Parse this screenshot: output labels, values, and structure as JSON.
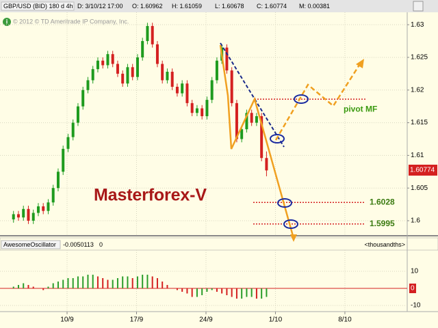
{
  "header": {
    "symbol": "GBP/USD (BID) 180 d 4h",
    "date": "D: 3/10/12 17:00",
    "open": "O: 1.60962",
    "high": "H: 1.61059",
    "low": "L: 1.60678",
    "close": "C: 1.60774",
    "range": "M: 0.00381"
  },
  "watermark": "© 2012 © TD Ameritrade IP Company, Inc.",
  "chart_data": [
    {
      "type": "candlestick",
      "title": "Masterforex-V",
      "x": [
        4.6,
        5.1,
        5.6,
        6.1,
        6.6,
        7.1,
        7.6,
        8.1,
        8.6,
        9.1,
        9.6,
        10.1,
        10.6,
        11.1,
        11.6,
        12.1,
        12.6,
        13.1,
        13.6,
        14.1,
        14.6,
        15.1,
        15.6,
        16.1,
        16.6,
        17.1,
        17.6,
        18.1,
        18.6,
        19.1,
        19.6,
        20.1,
        20.6,
        21.1,
        21.6,
        22.1,
        22.6,
        23.1,
        23.6,
        24.1,
        24.6,
        25.1,
        25.6,
        26.1,
        26.6,
        27.1,
        27.6,
        28.1,
        28.6,
        29.1,
        29.6,
        30.1
      ],
      "open": [
        1.6002,
        1.601,
        1.6005,
        1.6018,
        1.6,
        1.6012,
        1.6022,
        1.6015,
        1.6028,
        1.605,
        1.6075,
        1.611,
        1.6128,
        1.615,
        1.6175,
        1.62,
        1.6215,
        1.6232,
        1.6245,
        1.6238,
        1.6255,
        1.624,
        1.6225,
        1.621,
        1.6235,
        1.622,
        1.625,
        1.6275,
        1.6298,
        1.627,
        1.624,
        1.6215,
        1.6228,
        1.6205,
        1.6195,
        1.621,
        1.618,
        1.6165,
        1.6172,
        1.616,
        1.6185,
        1.6215,
        1.6245,
        1.6265,
        1.623,
        1.618,
        1.6125,
        1.614,
        1.6165,
        1.615,
        1.616,
        1.6096
      ],
      "high": [
        1.6015,
        1.6015,
        1.6023,
        1.6023,
        1.6017,
        1.6027,
        1.6027,
        1.6033,
        1.6055,
        1.608,
        1.6115,
        1.6133,
        1.6155,
        1.618,
        1.6205,
        1.622,
        1.6237,
        1.625,
        1.625,
        1.626,
        1.626,
        1.6245,
        1.623,
        1.624,
        1.624,
        1.6255,
        1.628,
        1.6303,
        1.6303,
        1.6275,
        1.6245,
        1.6233,
        1.6233,
        1.621,
        1.6215,
        1.6215,
        1.6185,
        1.6177,
        1.6177,
        1.619,
        1.622,
        1.625,
        1.627,
        1.627,
        1.6235,
        1.6185,
        1.6145,
        1.617,
        1.617,
        1.6165,
        1.6165,
        1.6106
      ],
      "low": [
        1.5997,
        1.6,
        1.6,
        1.5995,
        1.5995,
        1.6007,
        1.601,
        1.601,
        1.6023,
        1.6045,
        1.607,
        1.6105,
        1.6123,
        1.6145,
        1.617,
        1.6195,
        1.621,
        1.6227,
        1.6233,
        1.6233,
        1.6235,
        1.622,
        1.6205,
        1.6205,
        1.6215,
        1.6215,
        1.6245,
        1.627,
        1.6265,
        1.6235,
        1.621,
        1.621,
        1.62,
        1.619,
        1.619,
        1.6175,
        1.616,
        1.616,
        1.6155,
        1.6155,
        1.618,
        1.621,
        1.624,
        1.6225,
        1.6175,
        1.612,
        1.612,
        1.6135,
        1.6145,
        1.6145,
        1.6091,
        1.6068
      ],
      "close": [
        1.601,
        1.6005,
        1.6018,
        1.6,
        1.6012,
        1.6022,
        1.6015,
        1.6028,
        1.605,
        1.6075,
        1.611,
        1.6128,
        1.615,
        1.6175,
        1.62,
        1.6215,
        1.6232,
        1.6245,
        1.6238,
        1.6255,
        1.624,
        1.6225,
        1.621,
        1.6235,
        1.622,
        1.625,
        1.6275,
        1.6298,
        1.627,
        1.624,
        1.6215,
        1.6228,
        1.6205,
        1.6195,
        1.621,
        1.618,
        1.6165,
        1.6172,
        1.616,
        1.6185,
        1.6215,
        1.6245,
        1.6265,
        1.623,
        1.618,
        1.6125,
        1.614,
        1.6165,
        1.615,
        1.616,
        1.6096,
        1.6077
      ],
      "up_color": "#1e9b1e",
      "down_color": "#d42020",
      "xlim": [
        3.24,
        44.28
      ],
      "xticks": [
        {
          "value": 10,
          "label": "10/9"
        },
        {
          "value": 17,
          "label": "17/9"
        },
        {
          "value": 24,
          "label": "24/9"
        },
        {
          "value": 31,
          "label": "1/10"
        },
        {
          "value": 38,
          "label": "8/10"
        }
      ],
      "ylim": [
        1.5977,
        1.6319
      ],
      "yticks": [
        1.63,
        1.625,
        1.62,
        1.615,
        1.61,
        1.605,
        1.6
      ],
      "grid": true,
      "last_price": 1.60774,
      "pivot": {
        "label": "pivot MF",
        "value": 1.6186
      },
      "levels": [
        1.6028,
        1.5995
      ]
    },
    {
      "type": "bar",
      "title": "AwesomeOscillator",
      "header_items": [
        "-0.0050113",
        "0"
      ],
      "units": "<thousandths>",
      "values": [
        1,
        2,
        3,
        2,
        1,
        0,
        -1,
        1,
        3,
        4,
        5,
        6,
        6,
        7,
        7,
        8,
        8,
        7,
        6,
        5,
        5,
        6,
        7,
        7,
        6,
        7,
        8,
        8,
        7,
        6,
        4,
        2,
        0,
        -1,
        -2,
        -3,
        -5,
        -5,
        -4,
        -2,
        -1,
        -2,
        -3,
        -4,
        -5,
        -6,
        -6,
        -5,
        -5,
        -6,
        -6,
        -5
      ],
      "up_color": "#2a9d2a",
      "down_color": "#d42020",
      "ylim": [
        -13.6,
        22.4
      ],
      "yticks": [
        10,
        0,
        -10
      ],
      "zero_color": "#d42020"
    }
  ]
}
